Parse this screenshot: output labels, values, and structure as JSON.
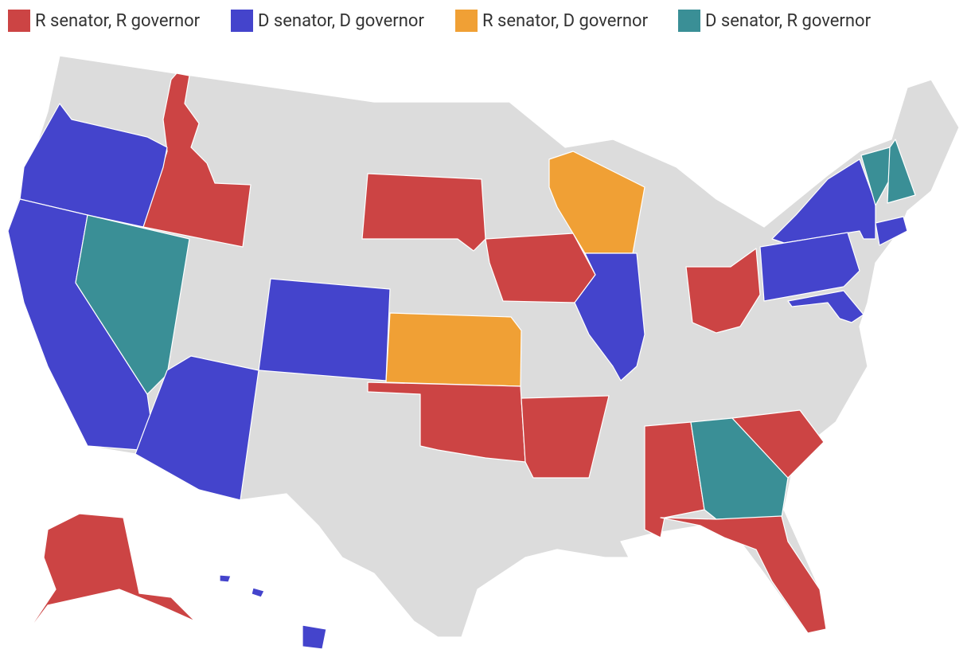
{
  "legend": [
    {
      "label": "R senator, R governor",
      "color": "#cc4444"
    },
    {
      "label": "D senator, D governor",
      "color": "#4444cc"
    },
    {
      "label": "R senator, D governor",
      "color": "#f0a035"
    },
    {
      "label": "D senator, R governor",
      "color": "#3a8f96"
    }
  ]
}
